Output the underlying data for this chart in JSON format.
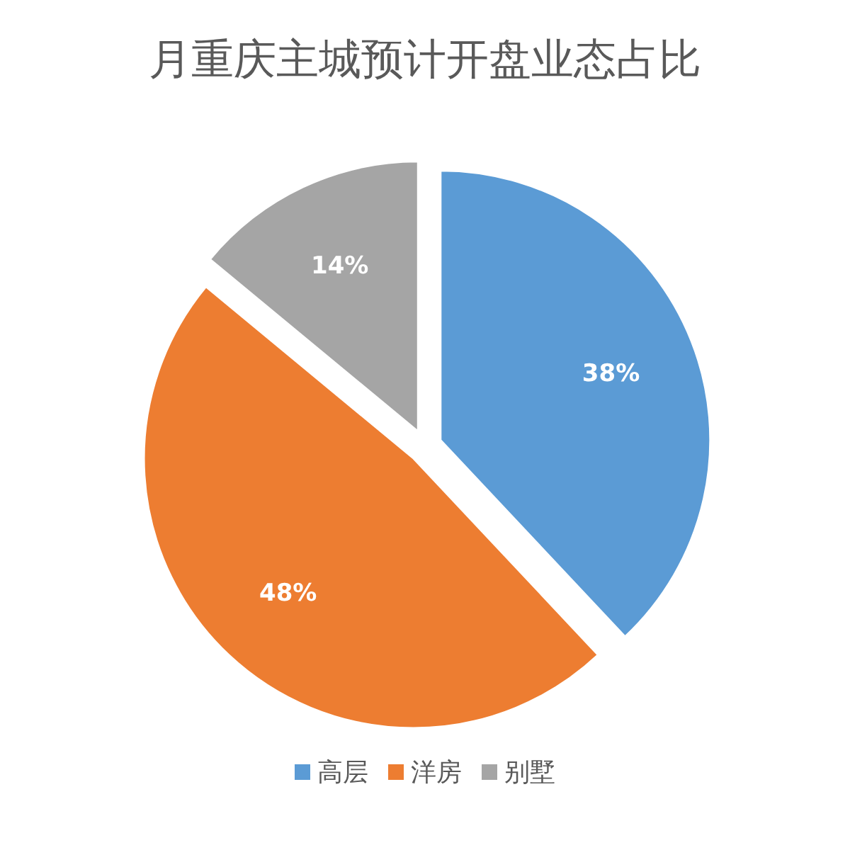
{
  "chart_data": {
    "type": "pie",
    "title": "月重庆主城预计开盘业态占比",
    "categories": [
      "高层",
      "洋房",
      "别墅"
    ],
    "values": [
      38,
      48,
      14
    ],
    "colors": [
      "#5b9bd5",
      "#ed7d31",
      "#a5a5a5"
    ],
    "value_labels": [
      "38%",
      "48%",
      "14%"
    ],
    "legend": "bottom"
  }
}
